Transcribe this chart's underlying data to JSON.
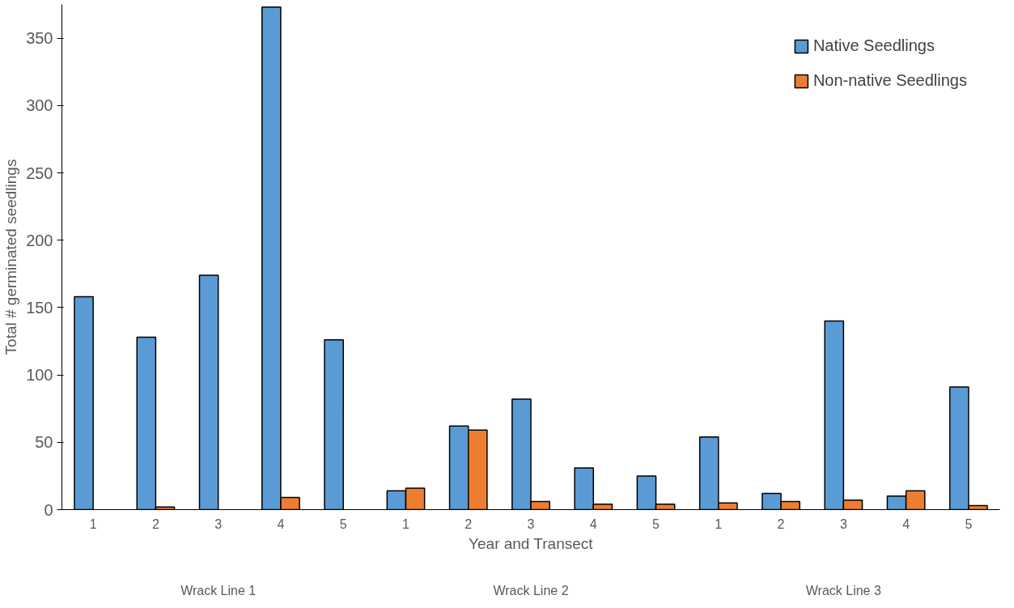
{
  "chart_data": {
    "type": "bar",
    "xlabel": "Year and Transect",
    "ylabel": "Total # germinated seedlings",
    "categories": [
      "1",
      "2",
      "3",
      "4",
      "5",
      "1",
      "2",
      "3",
      "4",
      "5",
      "1",
      "2",
      "3",
      "4",
      "5"
    ],
    "annotations": [
      "Wrack Line 1",
      "Wrack Line 2",
      "Wrack Line 3"
    ],
    "series": [
      {
        "name": "Native Seedlings",
        "color": "#5b9bd5",
        "values": [
          158,
          128,
          174,
          373,
          126,
          14,
          62,
          82,
          31,
          25,
          54,
          12,
          140,
          10,
          91
        ]
      },
      {
        "name": "Non-native Seedlings",
        "color": "#ed7d31",
        "values": [
          null,
          2,
          null,
          9,
          null,
          16,
          59,
          6,
          4,
          4,
          5,
          6,
          7,
          14,
          3
        ]
      }
    ],
    "ylim": [
      0,
      375
    ],
    "yticks": [
      0,
      50,
      100,
      150,
      200,
      250,
      300,
      350
    ],
    "grid": false,
    "legend": "top right"
  }
}
